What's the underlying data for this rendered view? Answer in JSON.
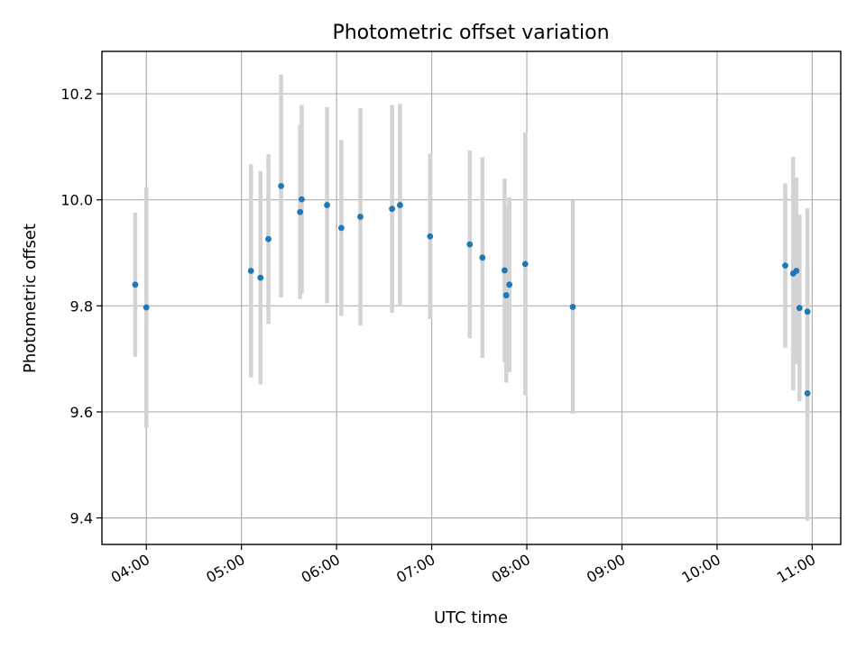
{
  "chart_data": {
    "type": "scatter",
    "title": "Photometric offset variation",
    "xlabel": "UTC time",
    "ylabel": "Photometric offset",
    "x_unit": "hours UTC",
    "xlim": [
      "03:32",
      "11:18"
    ],
    "ylim": [
      9.35,
      10.28
    ],
    "x_ticks": [
      {
        "label": "04:00",
        "value": "04:00"
      },
      {
        "label": "05:00",
        "value": "05:00"
      },
      {
        "label": "06:00",
        "value": "06:00"
      },
      {
        "label": "07:00",
        "value": "07:00"
      },
      {
        "label": "08:00",
        "value": "08:00"
      },
      {
        "label": "09:00",
        "value": "09:00"
      },
      {
        "label": "10:00",
        "value": "10:00"
      },
      {
        "label": "11:00",
        "value": "11:00"
      }
    ],
    "y_ticks": [
      {
        "label": "9.4",
        "value": 9.4
      },
      {
        "label": "9.6",
        "value": 9.6
      },
      {
        "label": "9.8",
        "value": 9.8
      },
      {
        "label": "10.0",
        "value": 10.0
      },
      {
        "label": "10.2",
        "value": 10.2
      }
    ],
    "grid": true,
    "marker_color": "#1f77b4",
    "errorbar_color": "#d3d3d3",
    "points": [
      {
        "t": "03:53",
        "y": 9.84,
        "err": 0.136
      },
      {
        "t": "04:00",
        "y": 9.797,
        "err": 0.227
      },
      {
        "t": "05:06",
        "y": 9.866,
        "err": 0.201
      },
      {
        "t": "05:12",
        "y": 9.853,
        "err": 0.201
      },
      {
        "t": "05:17",
        "y": 9.926,
        "err": 0.16
      },
      {
        "t": "05:25",
        "y": 10.026,
        "err": 0.21
      },
      {
        "t": "05:37",
        "y": 9.977,
        "err": 0.164
      },
      {
        "t": "05:38",
        "y": 10.001,
        "err": 0.178
      },
      {
        "t": "05:54",
        "y": 9.99,
        "err": 0.185
      },
      {
        "t": "06:03",
        "y": 9.947,
        "err": 0.166
      },
      {
        "t": "06:15",
        "y": 9.968,
        "err": 0.205
      },
      {
        "t": "06:35",
        "y": 9.983,
        "err": 0.196
      },
      {
        "t": "06:40",
        "y": 9.99,
        "err": 0.191
      },
      {
        "t": "06:59",
        "y": 9.931,
        "err": 0.156
      },
      {
        "t": "07:24",
        "y": 9.916,
        "err": 0.177
      },
      {
        "t": "07:32",
        "y": 9.891,
        "err": 0.189
      },
      {
        "t": "07:46",
        "y": 9.867,
        "err": 0.173
      },
      {
        "t": "07:47",
        "y": 9.82,
        "err": 0.165
      },
      {
        "t": "07:49",
        "y": 9.84,
        "err": 0.165
      },
      {
        "t": "07:59",
        "y": 9.879,
        "err": 0.248
      },
      {
        "t": "08:29",
        "y": 9.798,
        "err": 0.201
      },
      {
        "t": "10:43",
        "y": 9.876,
        "err": 0.155
      },
      {
        "t": "10:48",
        "y": 9.861,
        "err": 0.22
      },
      {
        "t": "10:50",
        "y": 9.866,
        "err": 0.176
      },
      {
        "t": "10:52",
        "y": 9.796,
        "err": 0.176
      },
      {
        "t": "10:57",
        "y": 9.789,
        "err": 0.195
      },
      {
        "t": "10:57",
        "y": 9.635,
        "err": 0.24
      }
    ]
  }
}
